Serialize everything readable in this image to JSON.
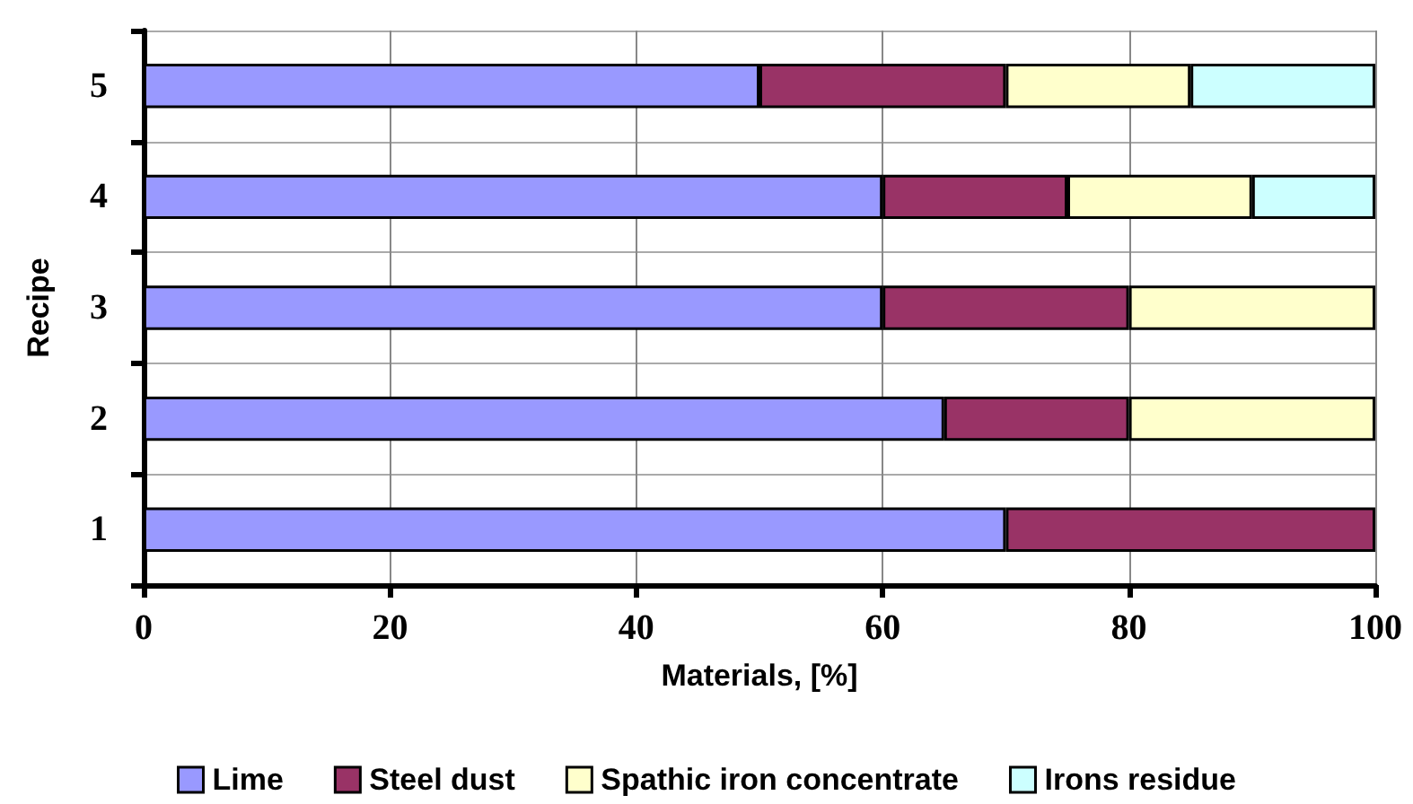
{
  "chart_data": {
    "type": "bar",
    "orientation": "horizontal",
    "stacked": true,
    "xlabel": "Materials, [%]",
    "ylabel": "Recipe",
    "categories": [
      "5",
      "4",
      "3",
      "2",
      "1"
    ],
    "series": [
      {
        "name": "Lime",
        "color": "#9999ff",
        "values": [
          50,
          60,
          60,
          65,
          70
        ]
      },
      {
        "name": "Steel dust",
        "color": "#993366",
        "values": [
          20,
          15,
          20,
          15,
          30
        ]
      },
      {
        "name": "Spathic iron concentrate",
        "color": "#ffffcc",
        "values": [
          15,
          15,
          20,
          20,
          null
        ]
      },
      {
        "name": "Irons residue",
        "color": "#ccffff",
        "values": [
          15,
          10,
          null,
          null,
          null
        ]
      }
    ],
    "xlim": [
      0,
      100
    ],
    "xticks": [
      0,
      20,
      40,
      60,
      80,
      100
    ],
    "grid": true,
    "legend": "bottom"
  }
}
